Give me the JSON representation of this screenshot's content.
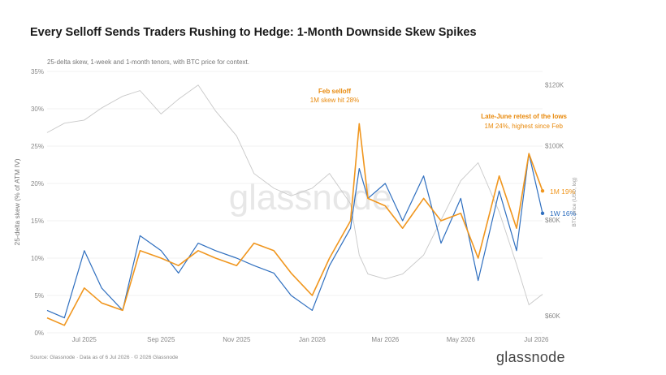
{
  "title": "Every Selloff Sends Traders Rushing to Hedge: 1-Month Downside Skew Spikes",
  "subtitle": "25-delta skew, 1-week and 1-month tenors, with BTC price for context.",
  "footer": "Source: Glassnode · Data as of 6 Jul 2026 · © 2026 Glassnode",
  "watermark": "glassnode",
  "logo": "glassnode",
  "colors": {
    "w1": "#2f6fbf",
    "m1": "#f0961e",
    "btc": "#c8c8c8",
    "annotation": "#e8890c"
  },
  "chart_data": {
    "type": "line",
    "title": "Every Selloff Sends Traders Rushing to Hedge: 1-Month Downside Skew Spikes",
    "ylabel": "25-delta skew (% of ATM IV)",
    "y2label": "BTC price (USD, log)",
    "ylim": [
      0,
      35
    ],
    "y2lim": [
      57000,
      125000
    ],
    "y2_scale": "log",
    "yticks": [
      "0%",
      "5%",
      "10%",
      "15%",
      "20%",
      "25%",
      "30%",
      "35%"
    ],
    "y2ticks": [
      "$60K",
      "$80K",
      "$100K",
      "$120K"
    ],
    "xticks": [
      "Jul 2025",
      "Sep 2025",
      "Nov 2025",
      "Jan 2026",
      "Mar 2026",
      "May 2026",
      "Jul 2026"
    ],
    "x": [
      "2025-06-01",
      "2025-06-15",
      "2025-07-01",
      "2025-07-15",
      "2025-08-01",
      "2025-08-15",
      "2025-09-01",
      "2025-09-15",
      "2025-10-01",
      "2025-10-15",
      "2025-11-01",
      "2025-11-15",
      "2025-12-01",
      "2025-12-15",
      "2026-01-01",
      "2026-01-15",
      "2026-02-01",
      "2026-02-08",
      "2026-02-15",
      "2026-03-01",
      "2026-03-15",
      "2026-04-01",
      "2026-04-15",
      "2026-05-01",
      "2026-05-15",
      "2026-06-01",
      "2026-06-15",
      "2026-06-25",
      "2026-07-06"
    ],
    "series": [
      {
        "name": "1W",
        "end_label": "1W 16%",
        "axis": "left",
        "values": [
          3,
          2,
          11,
          6,
          3,
          13,
          11,
          8,
          12,
          11,
          10,
          9,
          8,
          5,
          3,
          9,
          14,
          22,
          18,
          20,
          15,
          21,
          12,
          18,
          7,
          19,
          11,
          24,
          16
        ]
      },
      {
        "name": "1M",
        "end_label": "1M 19%",
        "axis": "left",
        "values": [
          2,
          1,
          6,
          4,
          3,
          11,
          10,
          9,
          11,
          10,
          9,
          12,
          11,
          8,
          5,
          10,
          15,
          28,
          18,
          17,
          14,
          18,
          15,
          16,
          10,
          21,
          14,
          24,
          19
        ]
      },
      {
        "name": "BTC",
        "axis": "right",
        "values": [
          104000,
          107000,
          108000,
          112000,
          116000,
          118000,
          110000,
          115000,
          120000,
          111000,
          103000,
          92000,
          88000,
          86000,
          88000,
          92000,
          84000,
          72000,
          68000,
          67000,
          68000,
          72000,
          80000,
          90000,
          95000,
          82000,
          70000,
          62000,
          64000
        ]
      }
    ],
    "annotations": [
      {
        "title": "Feb selloff",
        "text": "1M skew hit 28%"
      },
      {
        "title": "Late-June retest of the lows",
        "text": "1M 24%, highest since Feb"
      }
    ],
    "grid": true,
    "legend": "end-of-line labels"
  }
}
